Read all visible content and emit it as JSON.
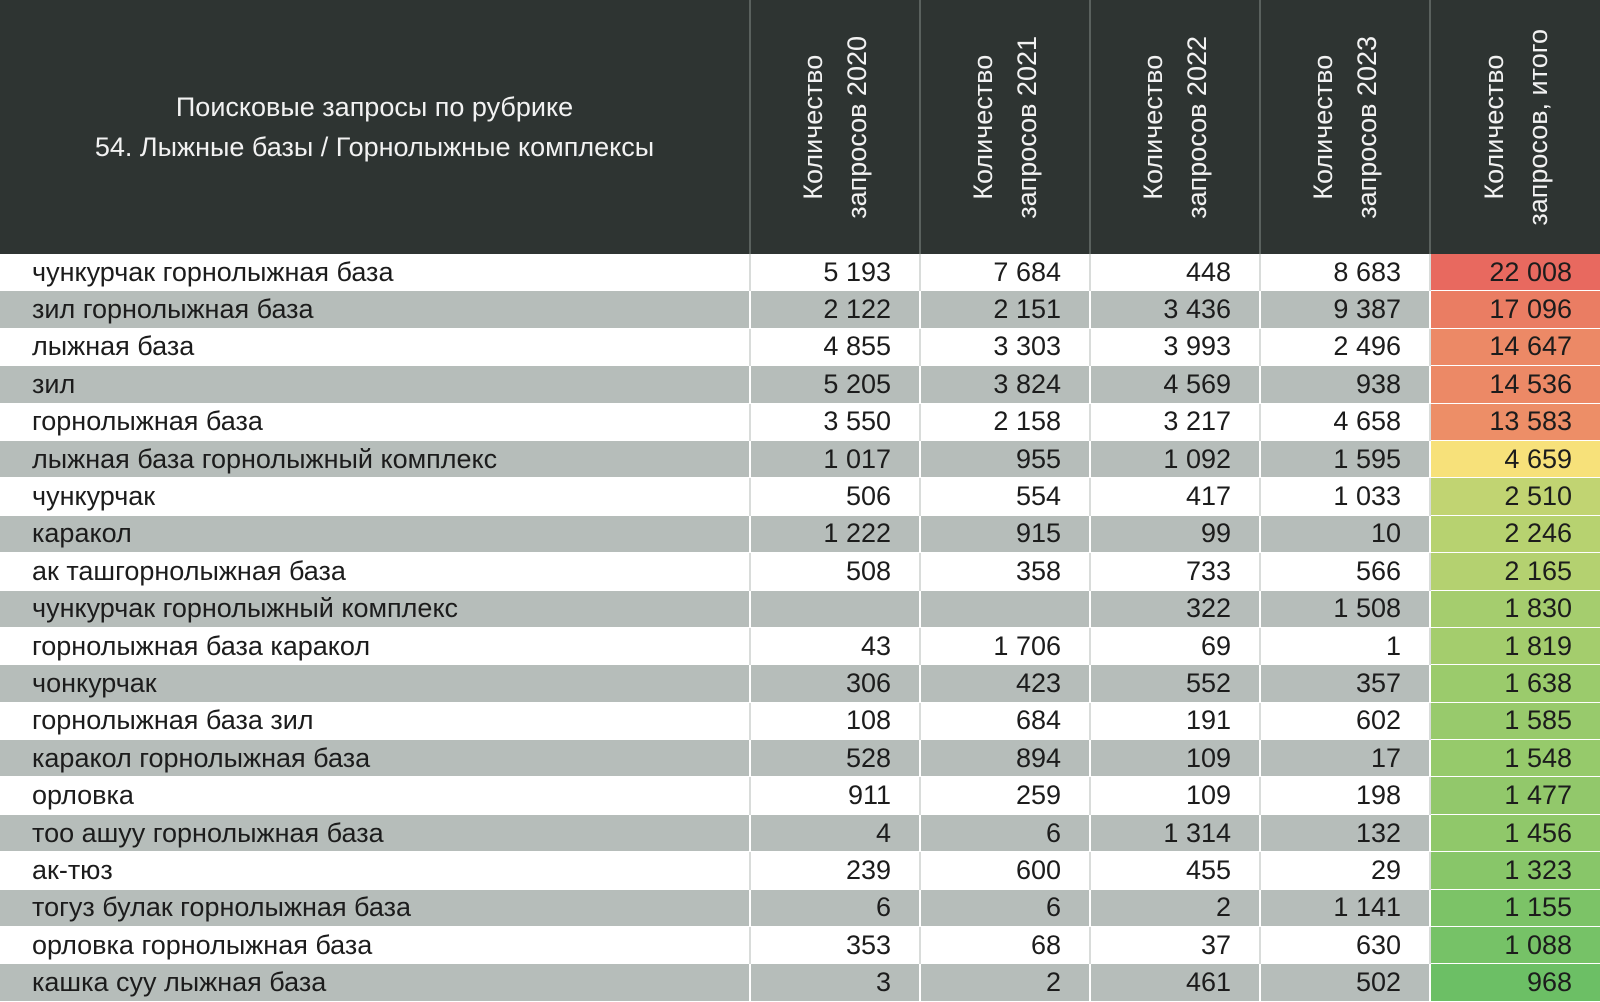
{
  "chart_data": {
    "type": "table",
    "title_line1": "Поисковые запросы по рубрике",
    "title_line2": "54. Лыжные базы / Горнолыжные комплексы",
    "columns": [
      {
        "line1": "Количество",
        "line2": "запросов 2020"
      },
      {
        "line1": "Количество",
        "line2": "запросов 2021"
      },
      {
        "line1": "Количество",
        "line2": "запросов 2022"
      },
      {
        "line1": "Количество",
        "line2": "запросов 2023"
      },
      {
        "line1": "Количество",
        "line2": "запросов, итого"
      }
    ],
    "rows": [
      {
        "query": "чункурчак горнолыжная база",
        "values": [
          "5 193",
          "7 684",
          "448",
          "8 683"
        ],
        "total": "22 008",
        "total_value": 22008
      },
      {
        "query": "зил горнолыжная база",
        "values": [
          "2 122",
          "2 151",
          "3 436",
          "9 387"
        ],
        "total": "17 096",
        "total_value": 17096
      },
      {
        "query": "лыжная база",
        "values": [
          "4 855",
          "3 303",
          "3 993",
          "2 496"
        ],
        "total": "14 647",
        "total_value": 14647
      },
      {
        "query": "зил",
        "values": [
          "5 205",
          "3 824",
          "4 569",
          "938"
        ],
        "total": "14 536",
        "total_value": 14536
      },
      {
        "query": "горнолыжная база",
        "values": [
          "3 550",
          "2 158",
          "3 217",
          "4 658"
        ],
        "total": "13 583",
        "total_value": 13583
      },
      {
        "query": "лыжная база горнолыжный комплекс",
        "values": [
          "1 017",
          "955",
          "1 092",
          "1 595"
        ],
        "total": "4 659",
        "total_value": 4659
      },
      {
        "query": "чункурчак",
        "values": [
          "506",
          "554",
          "417",
          "1 033"
        ],
        "total": "2 510",
        "total_value": 2510
      },
      {
        "query": "каракол",
        "values": [
          "1 222",
          "915",
          "99",
          "10"
        ],
        "total": "2 246",
        "total_value": 2246
      },
      {
        "query": "ак ташгорнолыжная база",
        "values": [
          "508",
          "358",
          "733",
          "566"
        ],
        "total": "2 165",
        "total_value": 2165
      },
      {
        "query": "чункурчак горнолыжный комплекс",
        "values": [
          "",
          "",
          "322",
          "1 508"
        ],
        "total": "1 830",
        "total_value": 1830
      },
      {
        "query": "горнолыжная база каракол",
        "values": [
          "43",
          "1 706",
          "69",
          "1"
        ],
        "total": "1 819",
        "total_value": 1819
      },
      {
        "query": "чонкурчак",
        "values": [
          "306",
          "423",
          "552",
          "357"
        ],
        "total": "1 638",
        "total_value": 1638
      },
      {
        "query": "горнолыжная база зил",
        "values": [
          "108",
          "684",
          "191",
          "602"
        ],
        "total": "1 585",
        "total_value": 1585
      },
      {
        "query": "каракол горнолыжная база",
        "values": [
          "528",
          "894",
          "109",
          "17"
        ],
        "total": "1 548",
        "total_value": 1548
      },
      {
        "query": "орловка",
        "values": [
          "911",
          "259",
          "109",
          "198"
        ],
        "total": "1 477",
        "total_value": 1477
      },
      {
        "query": "тоо ашуу горнолыжная база",
        "values": [
          "4",
          "6",
          "1 314",
          "132"
        ],
        "total": "1 456",
        "total_value": 1456
      },
      {
        "query": "ак-тюз",
        "values": [
          "239",
          "600",
          "455",
          "29"
        ],
        "total": "1 323",
        "total_value": 1323
      },
      {
        "query": "тогуз булак горнолыжная база",
        "values": [
          "6",
          "6",
          "2",
          "1 141"
        ],
        "total": "1 155",
        "total_value": 1155
      },
      {
        "query": "орловка горнолыжная база",
        "values": [
          "353",
          "68",
          "37",
          "630"
        ],
        "total": "1 088",
        "total_value": 1088
      },
      {
        "query": "кашка суу лыжная база",
        "values": [
          "3",
          "2",
          "461",
          "502"
        ],
        "total": "968",
        "total_value": 968
      }
    ],
    "color_scale": {
      "high": "#e8695f",
      "mid": "#f7e27a",
      "low": "#6cbf65"
    }
  }
}
